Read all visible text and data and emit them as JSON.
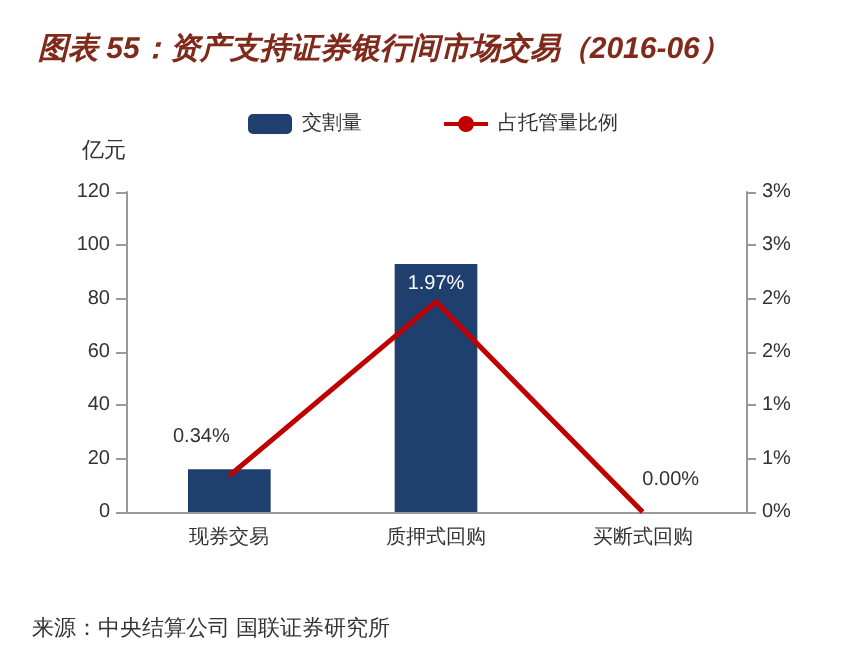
{
  "chart_data": {
    "type": "bar",
    "title": "图表 55：资产支持证券银行间市场交易（2016-06）",
    "ylabel": "亿元",
    "categories": [
      "现券交易",
      "质押式回购",
      "买断式回购"
    ],
    "series": [
      {
        "name": "交割量",
        "color": "#1f3f6e",
        "values": [
          16,
          93,
          0
        ]
      },
      {
        "name": "占托管量比例",
        "type": "line",
        "axis": "y2",
        "color": "#c00000",
        "values": [
          0.34,
          1.97,
          0.0
        ],
        "value_labels": [
          "0.34%",
          "1.97%",
          "0.00%"
        ]
      }
    ],
    "ylim": [
      0,
      120
    ],
    "yticks": [
      0,
      20,
      40,
      60,
      80,
      100,
      120
    ],
    "y2lim": [
      0,
      3
    ],
    "y2ticks": [
      {
        "value": 0,
        "label": "0%"
      },
      {
        "value": 0.5,
        "label": "1%"
      },
      {
        "value": 1,
        "label": "1%"
      },
      {
        "value": 1.5,
        "label": "2%"
      },
      {
        "value": 2,
        "label": "2%"
      },
      {
        "value": 2.5,
        "label": "3%"
      },
      {
        "value": 3,
        "label": "3%"
      }
    ],
    "legend": "top",
    "grid": false,
    "marker": "none",
    "annotations": [
      "来源：中央结算公司 国联证券研究所"
    ]
  }
}
